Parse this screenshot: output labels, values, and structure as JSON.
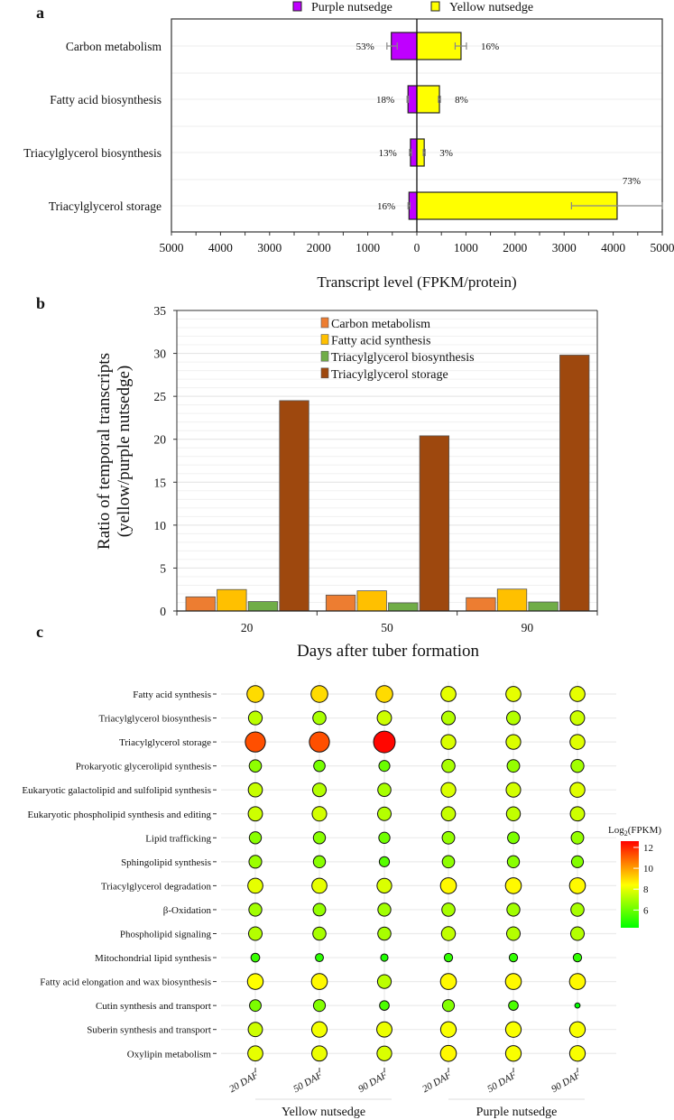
{
  "chart_data": [
    {
      "panel": "a",
      "type": "bar",
      "orientation": "horizontal-diverging",
      "xlabel": "Transcript level (FPKM/protein)",
      "xlim": [
        -5000,
        5000
      ],
      "xticks": [
        -5000,
        -4000,
        -3000,
        -2000,
        -1000,
        0,
        1000,
        2000,
        3000,
        4000,
        5000
      ],
      "xtick_labels": [
        "5000",
        "4000",
        "3000",
        "2000",
        "1000",
        "0",
        "1000",
        "2000",
        "3000",
        "4000",
        "5000"
      ],
      "categories": [
        "Carbon metabolism",
        "Fatty acid biosynthesis",
        "Triacylglycerol biosynthesis",
        "Triacylglycerol storage"
      ],
      "legend": [
        "Purple nutsedge",
        "Yellow nutsedge"
      ],
      "legend_position": "top",
      "series": [
        {
          "name": "Purple nutsedge",
          "color": "#bf00ff",
          "values": [
            -520,
            -180,
            -130,
            -160
          ],
          "errors": [
            [
              -610,
              -400
            ],
            [
              -200,
              -170
            ],
            [
              -150,
              -110
            ],
            [
              -180,
              -140
            ]
          ],
          "labels": [
            "53%",
            "18%",
            "13%",
            "16%"
          ]
        },
        {
          "name": "Yellow nutsedge",
          "color": "#ffff00",
          "values": [
            900,
            460,
            150,
            4080
          ],
          "errors": [
            [
              780,
              1010
            ],
            [
              440,
              480
            ],
            [
              130,
              170
            ],
            [
              3150,
              5000
            ]
          ],
          "labels": [
            "16%",
            "8%",
            "3%",
            "73%"
          ]
        }
      ]
    },
    {
      "panel": "b",
      "type": "bar",
      "xlabel": "Days after tuber formation",
      "ylabel_lines": [
        "Ratio of temporal transcripts",
        "(yellow/purple nutsedge)"
      ],
      "ylim": [
        0,
        35
      ],
      "yticks": [
        0,
        5,
        10,
        15,
        20,
        25,
        30,
        35
      ],
      "categories": [
        "20",
        "50",
        "90"
      ],
      "legend_position": "top-center",
      "grid": true,
      "series": [
        {
          "name": "Carbon metabolism",
          "color": "#ed7d31",
          "values": [
            1.65,
            1.85,
            1.55
          ]
        },
        {
          "name": "Fatty acid synthesis",
          "color": "#ffc000",
          "values": [
            2.5,
            2.35,
            2.55
          ]
        },
        {
          "name": "Triacylglycerol biosynthesis",
          "color": "#70ad47",
          "values": [
            1.1,
            0.95,
            1.05
          ]
        },
        {
          "name": "Triacylglycerol storage",
          "color": "#9e480e",
          "values": [
            24.5,
            20.4,
            29.8
          ]
        }
      ]
    },
    {
      "panel": "c",
      "type": "scatter",
      "subtype": "bubble",
      "columns": [
        "20 DAF",
        "50 DAF",
        "90 DAF",
        "20 DAF",
        "50 DAF",
        "90 DAF"
      ],
      "groups": [
        {
          "name": "Yellow nutsedge",
          "columns": [
            0,
            1,
            2
          ]
        },
        {
          "name": "Purple nutsedge",
          "columns": [
            3,
            4,
            5
          ]
        }
      ],
      "rows": [
        "Fatty acid synthesis",
        "Triacylglycerol biosynthesis",
        "Triacylglycerol storage",
        "Prokaryotic glycerolipid synthesis",
        "Eukaryotic galactolipid and sulfolipid synthesis",
        "Eukaryotic phospholipid synthesis and editing",
        "Lipid trafficking",
        "Sphingolipid synthesis",
        "Triacylglycerol degradation",
        "β-Oxidation",
        "Phospholipid signaling",
        "Mitochondrial lipid synthesis",
        "Fatty acid elongation and wax biosynthesis",
        "Cutin synthesis and transport",
        "Suberin synthesis and transport",
        "Oxylipin metabolism"
      ],
      "values": [
        [
          9.0,
          9.0,
          9.0,
          8.0,
          8.0,
          8.0
        ],
        [
          7.3,
          7.0,
          7.6,
          7.2,
          7.2,
          7.6
        ],
        [
          11.3,
          11.3,
          12.5,
          7.8,
          7.8,
          7.9
        ],
        [
          6.6,
          6.2,
          6.0,
          7.0,
          6.7,
          6.9
        ],
        [
          7.5,
          7.2,
          7.0,
          7.8,
          7.7,
          7.9
        ],
        [
          7.6,
          7.7,
          7.2,
          7.5,
          7.4,
          7.6
        ],
        [
          6.5,
          6.5,
          6.1,
          6.7,
          6.3,
          6.7
        ],
        [
          6.8,
          6.5,
          5.7,
          6.6,
          6.5,
          6.4
        ],
        [
          8.0,
          8.0,
          7.8,
          8.5,
          8.5,
          8.5
        ],
        [
          6.9,
          6.7,
          6.9,
          7.0,
          6.9,
          7.0
        ],
        [
          7.2,
          7.0,
          7.0,
          7.4,
          7.2,
          7.2
        ],
        [
          5.2,
          5.0,
          4.8,
          5.1,
          5.1,
          5.1
        ],
        [
          8.4,
          8.5,
          7.3,
          8.5,
          8.5,
          8.5
        ],
        [
          6.3,
          6.4,
          5.5,
          6.4,
          5.5,
          4.3
        ],
        [
          7.6,
          8.2,
          8.1,
          8.3,
          8.3,
          8.3
        ],
        [
          8.0,
          8.1,
          7.8,
          8.5,
          8.3,
          8.3
        ]
      ],
      "colorbar": {
        "title_base": "Log",
        "title_sub": "2",
        "title_rest": "(FPKM)",
        "range": [
          4.3,
          12.6
        ],
        "ticks": [
          12,
          10,
          8,
          6
        ],
        "colors": [
          "#00ff00",
          "#ffff00",
          "#ff0000"
        ]
      }
    }
  ],
  "panel_letters": [
    "a",
    "b",
    "c"
  ]
}
